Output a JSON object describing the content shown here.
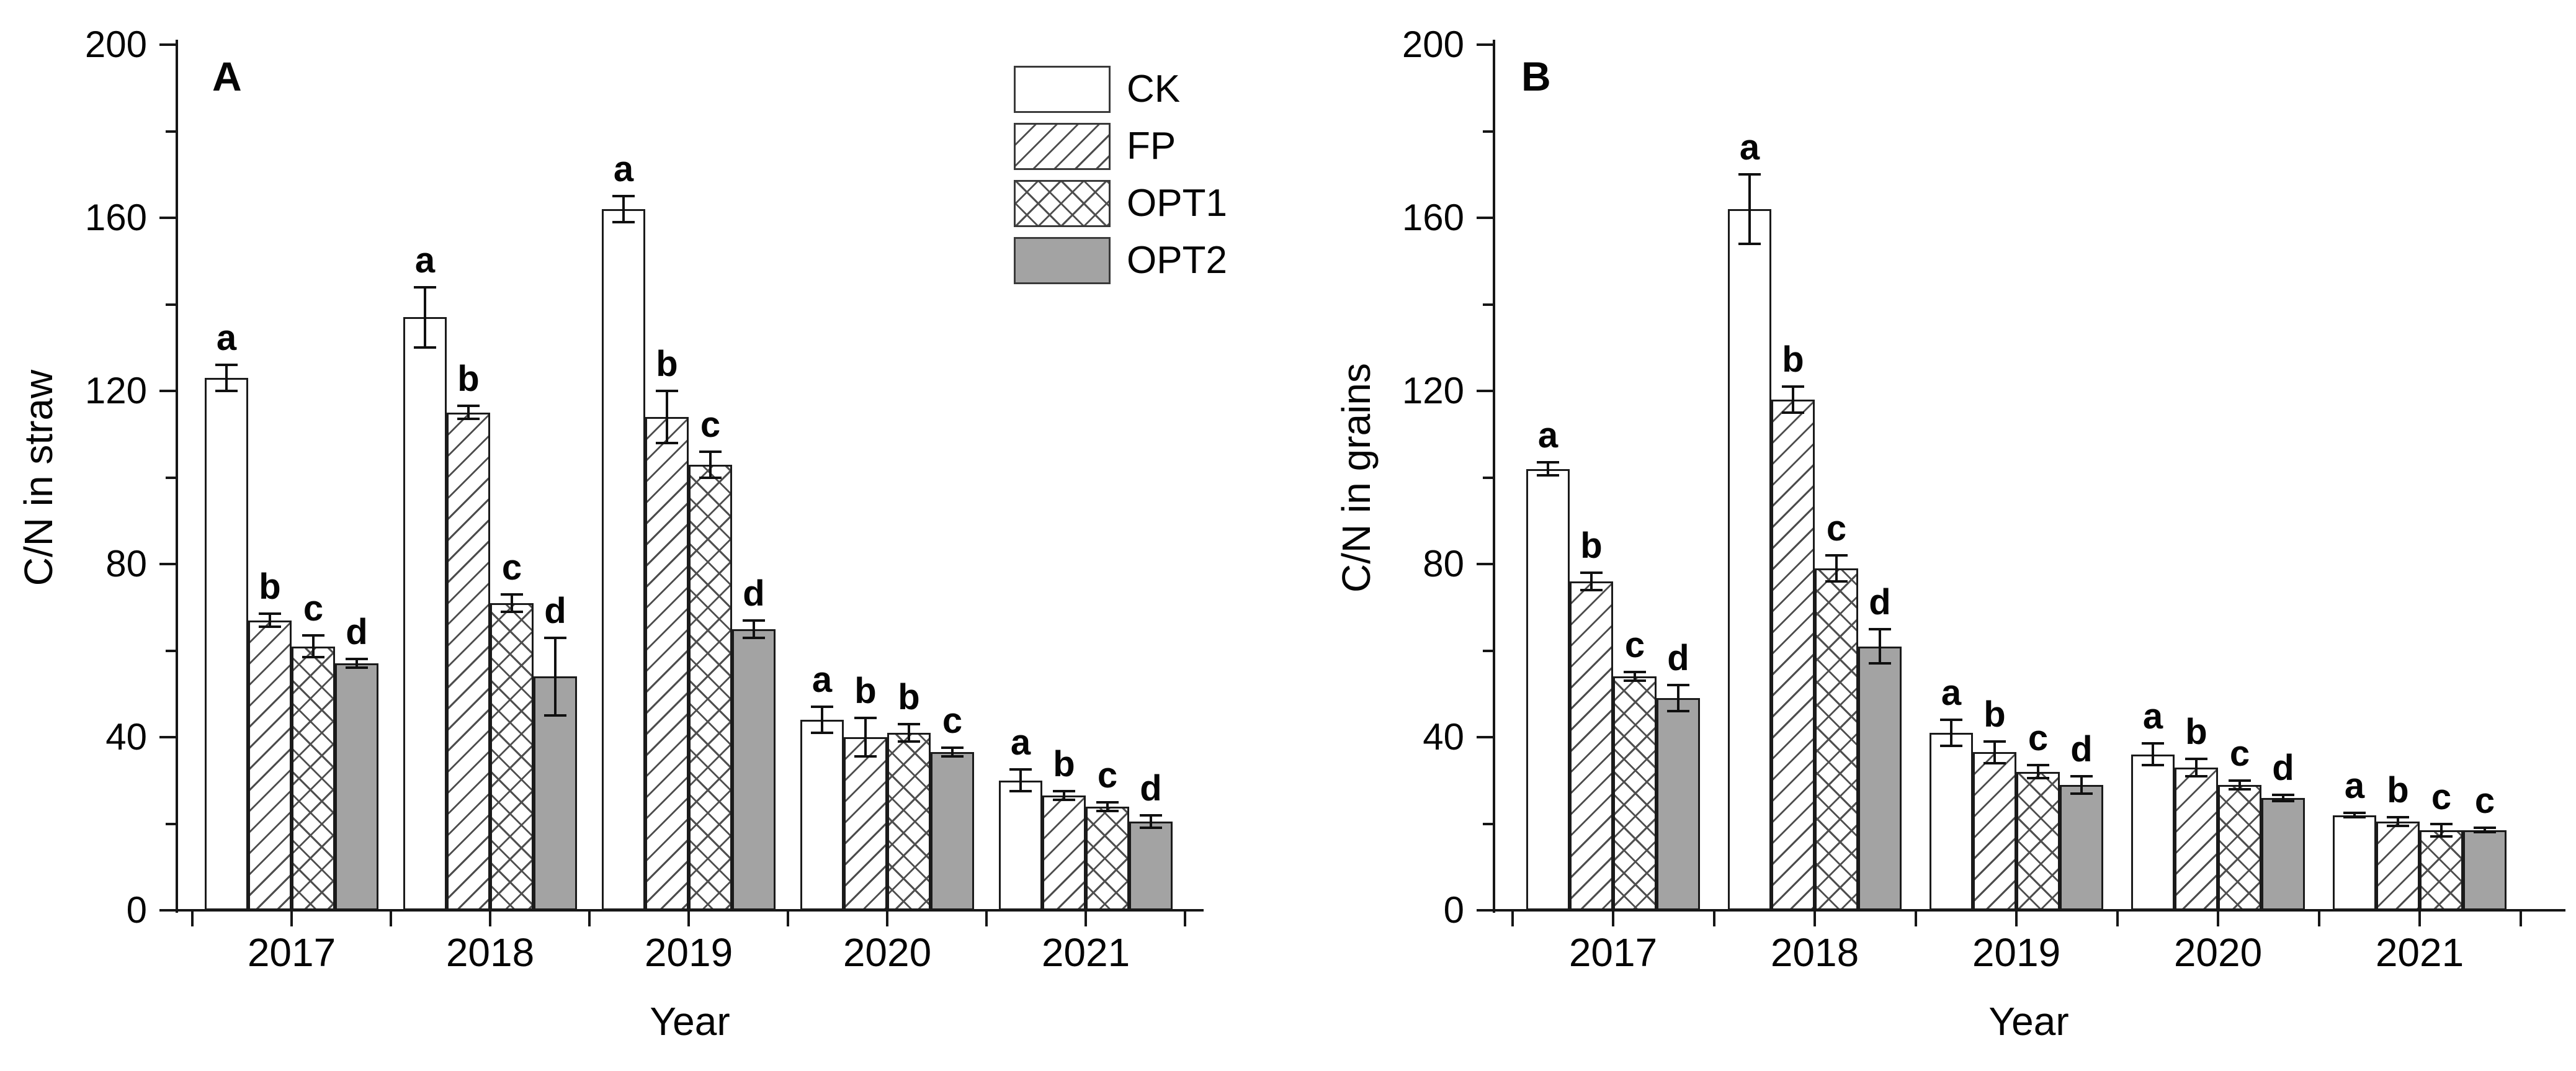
{
  "figure": {
    "background_color": "#ffffff",
    "ink_color": "#000000",
    "gray_fill_color": "#a3a3a3",
    "legend_items": [
      "CK",
      "FP",
      "OPT1",
      "OPT2"
    ]
  },
  "chart_data": [
    {
      "type": "bar",
      "panel_label": "A",
      "xlabel": "Year",
      "ylabel": "C/N in straw",
      "ylim": [
        0,
        200
      ],
      "yticks": [
        0,
        40,
        80,
        120,
        160,
        200
      ],
      "yticks_minor": [
        20,
        60,
        100,
        140,
        180
      ],
      "grid": false,
      "legend_position": "top-right",
      "error_bars": true,
      "categories": [
        "2017",
        "2018",
        "2019",
        "2020",
        "2021"
      ],
      "series": [
        {
          "name": "CK",
          "pattern": "plain-white",
          "values": [
            123,
            137,
            162,
            44,
            30
          ],
          "errors": [
            3,
            7,
            3,
            3,
            2.5
          ],
          "letters": [
            "a",
            "a",
            "a",
            "a",
            "a"
          ]
        },
        {
          "name": "FP",
          "pattern": "diagonal-hatch",
          "values": [
            67,
            115,
            114,
            40,
            26.5
          ],
          "errors": [
            1.5,
            1.5,
            6,
            4.5,
            1
          ],
          "letters": [
            "b",
            "b",
            "b",
            "b",
            "b"
          ]
        },
        {
          "name": "OPT1",
          "pattern": "cross-hatch",
          "values": [
            61,
            71,
            103,
            41,
            24
          ],
          "errors": [
            2.5,
            2,
            3,
            2,
            1
          ],
          "letters": [
            "c",
            "c",
            "c",
            "b",
            "c"
          ]
        },
        {
          "name": "OPT2",
          "pattern": "solid-gray",
          "values": [
            57,
            54,
            65,
            36.5,
            20.5
          ],
          "errors": [
            1,
            9,
            2,
            1,
            1.5
          ],
          "letters": [
            "d",
            "d",
            "d",
            "c",
            "d"
          ]
        }
      ]
    },
    {
      "type": "bar",
      "panel_label": "B",
      "xlabel": "Year",
      "ylabel": "C/N in grains",
      "ylim": [
        0,
        200
      ],
      "yticks": [
        0,
        40,
        80,
        120,
        160,
        200
      ],
      "yticks_minor": [
        20,
        60,
        100,
        140,
        180
      ],
      "grid": false,
      "legend_position": "none",
      "error_bars": true,
      "categories": [
        "2017",
        "2018",
        "2019",
        "2020",
        "2021"
      ],
      "series": [
        {
          "name": "CK",
          "pattern": "plain-white",
          "values": [
            102,
            162,
            41,
            36,
            22
          ],
          "errors": [
            1.5,
            8,
            3,
            2.5,
            0.5
          ],
          "letters": [
            "a",
            "a",
            "a",
            "a",
            "a"
          ]
        },
        {
          "name": "FP",
          "pattern": "diagonal-hatch",
          "values": [
            76,
            118,
            36.5,
            33,
            20.5
          ],
          "errors": [
            2,
            3,
            2.5,
            2,
            1
          ],
          "letters": [
            "b",
            "b",
            "b",
            "b",
            "b"
          ]
        },
        {
          "name": "OPT1",
          "pattern": "cross-hatch",
          "values": [
            54,
            79,
            32,
            29,
            18.5
          ],
          "errors": [
            1,
            3,
            1.5,
            1,
            1.5
          ],
          "letters": [
            "c",
            "c",
            "c",
            "c",
            "c"
          ]
        },
        {
          "name": "OPT2",
          "pattern": "solid-gray",
          "values": [
            49,
            61,
            29,
            26,
            18.5
          ],
          "errors": [
            3,
            4,
            2,
            0.7,
            0.5
          ],
          "letters": [
            "d",
            "d",
            "d",
            "d",
            "c"
          ]
        }
      ]
    }
  ]
}
